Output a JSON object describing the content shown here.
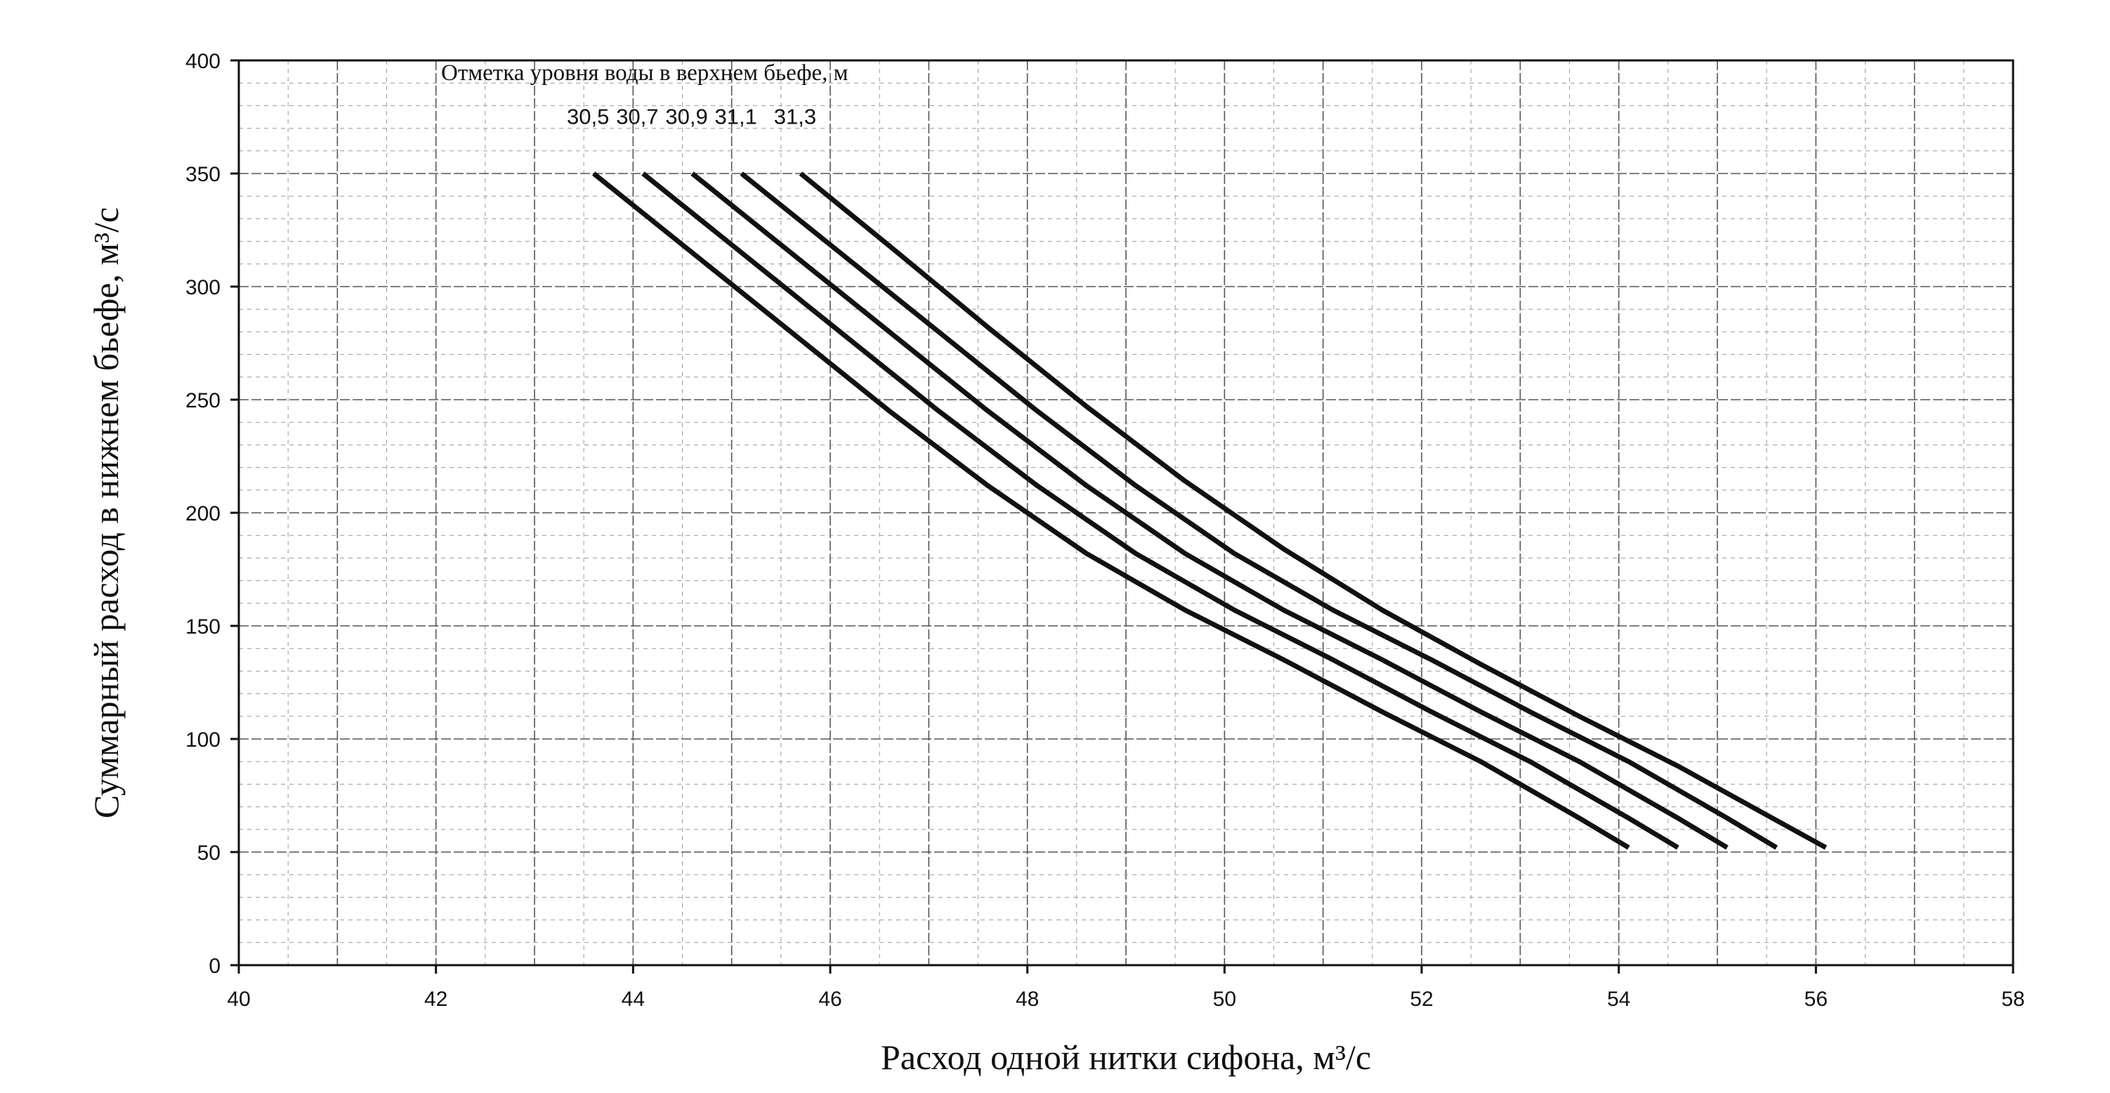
{
  "chart_data": {
    "type": "line",
    "title": "",
    "xlabel": "Расход одной нитки сифона, м³/с",
    "ylabel": "Суммарный расход в нижнем бьефе, м³/с",
    "xlim": [
      40,
      58
    ],
    "ylim": [
      0,
      400
    ],
    "x_ticks": [
      "40",
      "42",
      "44",
      "46",
      "48",
      "50",
      "52",
      "54",
      "56",
      "58"
    ],
    "y_ticks": [
      "0",
      "50",
      "100",
      "150",
      "200",
      "250",
      "300",
      "350",
      "400"
    ],
    "grid": true,
    "legend": "none",
    "annotation_title": "Отметка уровня воды в верхнем бьефе, м",
    "line_color": "#111111",
    "series": [
      {
        "name": "30,5",
        "points": [
          [
            43.6,
            350
          ],
          [
            44.6,
            315
          ],
          [
            45.6,
            280
          ],
          [
            46.6,
            245
          ],
          [
            47.6,
            212
          ],
          [
            48.6,
            182
          ],
          [
            49.6,
            157
          ],
          [
            50.6,
            135
          ],
          [
            51.6,
            112
          ],
          [
            52.6,
            90
          ],
          [
            53.6,
            65
          ],
          [
            54.1,
            52
          ]
        ]
      },
      {
        "name": "30,7",
        "points": [
          [
            44.1,
            350
          ],
          [
            45.1,
            315
          ],
          [
            46.1,
            280
          ],
          [
            47.1,
            245
          ],
          [
            48.1,
            212
          ],
          [
            49.1,
            182
          ],
          [
            50.1,
            157
          ],
          [
            51.1,
            135
          ],
          [
            52.1,
            112
          ],
          [
            53.1,
            90
          ],
          [
            54.1,
            65
          ],
          [
            54.6,
            52
          ]
        ]
      },
      {
        "name": "30,9",
        "points": [
          [
            44.6,
            350
          ],
          [
            45.6,
            315
          ],
          [
            46.6,
            280
          ],
          [
            47.6,
            245
          ],
          [
            48.6,
            212
          ],
          [
            49.6,
            182
          ],
          [
            50.6,
            157
          ],
          [
            51.6,
            135
          ],
          [
            52.6,
            112
          ],
          [
            53.6,
            90
          ],
          [
            54.6,
            65
          ],
          [
            55.1,
            52
          ]
        ]
      },
      {
        "name": "31,1",
        "points": [
          [
            45.1,
            350
          ],
          [
            46.1,
            315
          ],
          [
            47.1,
            280
          ],
          [
            48.1,
            245
          ],
          [
            49.1,
            212
          ],
          [
            50.1,
            182
          ],
          [
            51.1,
            157
          ],
          [
            52.1,
            135
          ],
          [
            53.1,
            112
          ],
          [
            54.1,
            90
          ],
          [
            55.1,
            65
          ],
          [
            55.6,
            52
          ]
        ]
      },
      {
        "name": "31,3",
        "points": [
          [
            45.7,
            350
          ],
          [
            46.6,
            318
          ],
          [
            47.6,
            282
          ],
          [
            48.6,
            247
          ],
          [
            49.6,
            214
          ],
          [
            50.6,
            184
          ],
          [
            51.6,
            157
          ],
          [
            52.6,
            133
          ],
          [
            53.6,
            110
          ],
          [
            54.6,
            88
          ],
          [
            55.6,
            64
          ],
          [
            56.1,
            52
          ]
        ]
      }
    ]
  }
}
